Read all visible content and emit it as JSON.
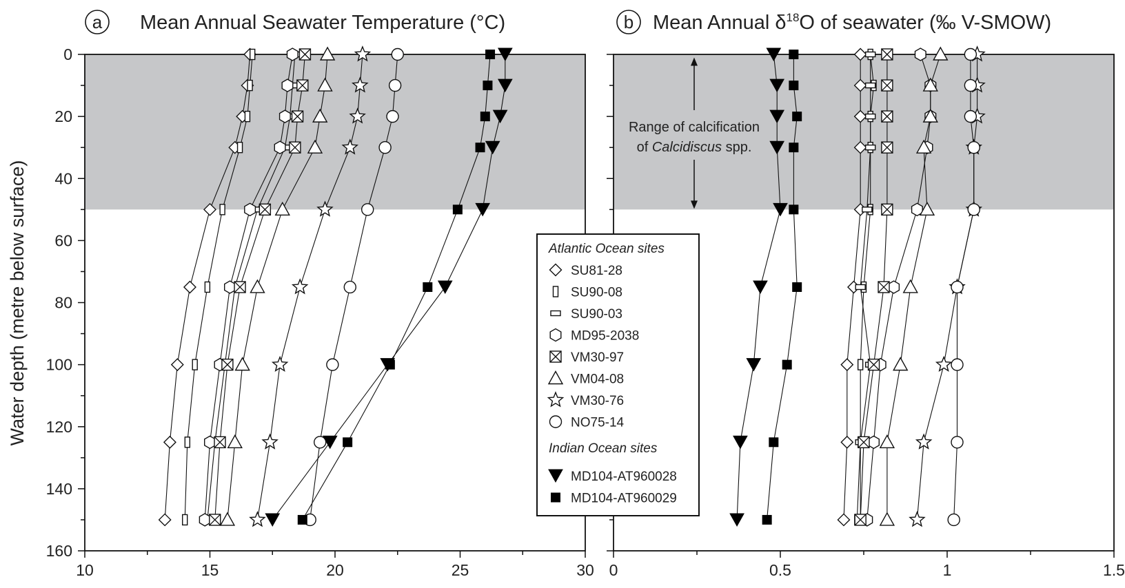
{
  "figure": {
    "ylabel": "Water depth (metre below surface)",
    "y_ticks": [
      "0",
      "20",
      "40",
      "60",
      "80",
      "100",
      "120",
      "140",
      "160"
    ],
    "shade_label_line1": "Range of calcification",
    "shade_label_line2_pre": "of ",
    "shade_label_line2_italic": "Calcidiscus",
    "shade_label_line2_post": " spp."
  },
  "legend": {
    "atlantic_title": "Atlantic Ocean sites",
    "indian_title": "Indian Ocean sites",
    "atlantic_sites": [
      {
        "name": "SU81-28",
        "marker": "diamond"
      },
      {
        "name": "SU90-08",
        "marker": "tall-rect"
      },
      {
        "name": "SU90-03",
        "marker": "wide-rect"
      },
      {
        "name": "MD95-2038",
        "marker": "hexagon"
      },
      {
        "name": "VM30-97",
        "marker": "crossed-square"
      },
      {
        "name": "VM04-08",
        "marker": "triangle-up"
      },
      {
        "name": "VM30-76",
        "marker": "star"
      },
      {
        "name": "NO75-14",
        "marker": "circle"
      }
    ],
    "indian_sites": [
      {
        "name": "MD104-AT960028",
        "marker": "triangle-down-filled"
      },
      {
        "name": "MD104-AT960029",
        "marker": "square-filled"
      }
    ]
  },
  "chart_data": [
    {
      "type": "scatter",
      "panel_letter": "a",
      "title": "Mean Annual Seawater Temperature (°C)",
      "xlabel": "",
      "ylabel": "Water depth (metre below surface)",
      "xlim": [
        10,
        30
      ],
      "ylim": [
        0,
        160
      ],
      "y_inverted": true,
      "x_ticks": [
        "10",
        "15",
        "20",
        "25",
        "30"
      ],
      "shaded_range_depth": [
        0,
        50
      ],
      "depths": [
        0,
        10,
        20,
        30,
        50,
        75,
        100,
        125,
        150
      ],
      "series": [
        {
          "name": "SU81-28",
          "values": [
            16.6,
            16.5,
            16.3,
            16.0,
            15.0,
            14.2,
            13.7,
            13.4,
            13.2
          ]
        },
        {
          "name": "SU90-08",
          "values": [
            16.7,
            16.6,
            16.5,
            16.2,
            15.5,
            14.9,
            14.4,
            14.1,
            14.0
          ]
        },
        {
          "name": "SU90-03",
          "values": [
            18.4,
            18.3,
            18.2,
            18.0,
            16.9,
            16.0,
            15.6,
            15.2,
            14.9
          ]
        },
        {
          "name": "MD95-2038",
          "values": [
            18.3,
            18.1,
            18.0,
            17.8,
            16.6,
            15.8,
            15.4,
            15.0,
            14.8
          ]
        },
        {
          "name": "VM30-97",
          "values": [
            18.8,
            18.7,
            18.5,
            18.4,
            17.2,
            16.2,
            15.7,
            15.4,
            15.2
          ]
        },
        {
          "name": "VM04-08",
          "values": [
            19.7,
            19.6,
            19.4,
            19.2,
            17.9,
            16.9,
            16.3,
            16.0,
            15.7
          ]
        },
        {
          "name": "VM30-76",
          "values": [
            21.1,
            21.0,
            20.9,
            20.6,
            19.6,
            18.6,
            17.8,
            17.4,
            16.9
          ]
        },
        {
          "name": "NO75-14",
          "values": [
            22.5,
            22.4,
            22.3,
            22.0,
            21.3,
            20.6,
            19.9,
            19.4,
            19.0
          ]
        },
        {
          "name": "MD104-AT960028",
          "values": [
            26.8,
            26.8,
            26.6,
            26.3,
            25.9,
            24.4,
            22.1,
            19.8,
            17.5
          ]
        },
        {
          "name": "MD104-AT960029",
          "values": [
            26.2,
            26.1,
            26.0,
            25.8,
            24.9,
            23.7,
            22.2,
            20.5,
            18.7
          ]
        }
      ]
    },
    {
      "type": "scatter",
      "panel_letter": "b",
      "title_pre": "Mean Annual δ",
      "title_sup": "18",
      "title_post": "O of seawater (‰ V-SMOW)",
      "xlabel": "",
      "ylabel": "",
      "xlim": [
        0,
        1.5
      ],
      "ylim": [
        0,
        160
      ],
      "y_inverted": true,
      "x_ticks": [
        "0",
        "0.5",
        "1",
        "1.5"
      ],
      "shaded_range_depth": [
        0,
        50
      ],
      "depths": [
        0,
        10,
        20,
        30,
        50,
        75,
        100,
        125,
        150
      ],
      "series": [
        {
          "name": "SU81-28",
          "values": [
            0.74,
            0.74,
            0.74,
            0.74,
            0.74,
            0.72,
            0.7,
            0.7,
            0.69
          ]
        },
        {
          "name": "SU90-08",
          "values": [
            0.77,
            0.78,
            0.77,
            0.77,
            0.77,
            0.75,
            0.74,
            0.74,
            0.73
          ]
        },
        {
          "name": "SU90-03",
          "values": [
            0.77,
            0.77,
            0.77,
            0.77,
            0.76,
            0.74,
            0.77,
            0.74,
            0.74
          ]
        },
        {
          "name": "MD95-2038",
          "values": [
            0.92,
            0.95,
            0.95,
            0.94,
            0.91,
            0.84,
            0.8,
            0.78,
            0.76
          ]
        },
        {
          "name": "VM30-97",
          "values": [
            0.82,
            0.82,
            0.82,
            0.82,
            0.82,
            0.81,
            0.78,
            0.75,
            0.74
          ]
        },
        {
          "name": "VM04-08",
          "values": [
            0.98,
            0.95,
            0.95,
            0.93,
            0.94,
            0.89,
            0.86,
            0.82,
            0.82
          ]
        },
        {
          "name": "VM30-76",
          "values": [
            1.09,
            1.09,
            1.09,
            1.08,
            1.08,
            1.03,
            0.99,
            0.93,
            0.91
          ]
        },
        {
          "name": "NO75-14",
          "values": [
            1.07,
            1.07,
            1.07,
            1.08,
            1.08,
            1.03,
            1.03,
            1.03,
            1.02
          ]
        },
        {
          "name": "MD104-AT960028",
          "values": [
            0.48,
            0.49,
            0.49,
            0.49,
            0.5,
            0.44,
            0.42,
            0.38,
            0.37
          ]
        },
        {
          "name": "MD104-AT960029",
          "values": [
            0.54,
            0.54,
            0.55,
            0.54,
            0.54,
            0.55,
            0.52,
            0.48,
            0.46
          ]
        }
      ]
    }
  ]
}
